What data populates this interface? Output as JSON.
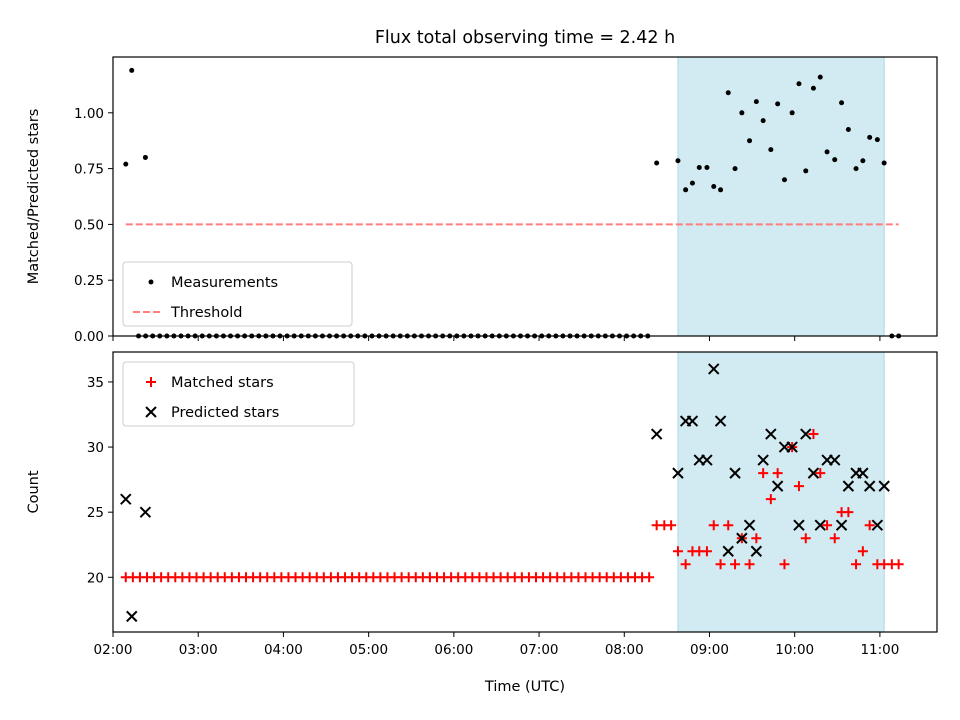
{
  "chart_data": [
    {
      "type": "scatter",
      "title": "Flux total observing time = 2.42 h",
      "ylabel": "Matched/Predicted stars",
      "xlabel": "",
      "xlim": [
        2.0,
        11.67
      ],
      "ylim": [
        0.0,
        1.25
      ],
      "yticks": [
        0.0,
        0.25,
        0.5,
        0.75,
        1.0
      ],
      "ytick_labels": [
        "0.00",
        "0.25",
        "0.50",
        "0.75",
        "1.00"
      ],
      "xticks": [
        2,
        3,
        4,
        5,
        6,
        7,
        8,
        9,
        10,
        11
      ],
      "shaded_region": {
        "x_start": 8.63,
        "x_end": 11.05,
        "color": "#add8e6"
      },
      "legend": {
        "position": "lower-left",
        "entries": [
          {
            "label": "Measurements",
            "marker": "dot",
            "color": "#000000"
          },
          {
            "label": "Threshold",
            "marker": "dashed-line",
            "color": "#ff7f7f"
          }
        ]
      },
      "threshold": {
        "label": "Threshold",
        "y": 0.5,
        "x_start": 2.15,
        "x_end": 11.22,
        "color": "#ff7f7f"
      },
      "series": [
        {
          "label": "Measurements",
          "marker": "dot",
          "color": "#000000",
          "points": [
            [
              2.15,
              0.77
            ],
            [
              2.22,
              1.19
            ],
            [
              2.38,
              0.8
            ],
            [
              8.38,
              0.775
            ],
            [
              8.63,
              0.785
            ],
            [
              8.72,
              0.655
            ],
            [
              8.8,
              0.685
            ],
            [
              8.88,
              0.755
            ],
            [
              8.97,
              0.755
            ],
            [
              9.05,
              0.67
            ],
            [
              9.13,
              0.655
            ],
            [
              9.22,
              1.09
            ],
            [
              9.3,
              0.75
            ],
            [
              9.38,
              1.0
            ],
            [
              9.47,
              0.875
            ],
            [
              9.55,
              1.05
            ],
            [
              9.63,
              0.965
            ],
            [
              9.72,
              0.835
            ],
            [
              9.8,
              1.04
            ],
            [
              9.88,
              0.7
            ],
            [
              9.97,
              1.0
            ],
            [
              10.05,
              1.13
            ],
            [
              10.13,
              0.74
            ],
            [
              10.22,
              1.11
            ],
            [
              10.3,
              1.16
            ],
            [
              10.38,
              0.825
            ],
            [
              10.47,
              0.79
            ],
            [
              10.55,
              1.045
            ],
            [
              10.63,
              0.925
            ],
            [
              10.72,
              0.75
            ],
            [
              10.8,
              0.785
            ],
            [
              10.88,
              0.89
            ],
            [
              10.97,
              0.88
            ],
            [
              11.05,
              0.775
            ]
          ],
          "zero_points": {
            "x_start": 2.3,
            "x_end": 8.3,
            "step": 0.083,
            "y": 0.0,
            "extra_x": [
              11.14,
              11.22
            ]
          }
        }
      ]
    },
    {
      "type": "scatter",
      "title": "",
      "ylabel": "Count",
      "xlabel": "Time (UTC)",
      "xlim": [
        2.0,
        11.67
      ],
      "ylim": [
        15.8,
        37.3
      ],
      "yticks": [
        20,
        25,
        30,
        35
      ],
      "ytick_labels": [
        "20",
        "25",
        "30",
        "35"
      ],
      "xticks": [
        2,
        3,
        4,
        5,
        6,
        7,
        8,
        9,
        10,
        11
      ],
      "xtick_labels": [
        "02:00",
        "03:00",
        "04:00",
        "05:00",
        "06:00",
        "07:00",
        "08:00",
        "09:00",
        "10:00",
        "11:00"
      ],
      "shaded_region": {
        "x_start": 8.63,
        "x_end": 11.05,
        "color": "#add8e6"
      },
      "legend": {
        "position": "upper-left",
        "entries": [
          {
            "label": "Matched stars",
            "marker": "plus",
            "color": "#ff0000"
          },
          {
            "label": "Predicted stars",
            "marker": "x",
            "color": "#000000"
          }
        ]
      },
      "series": [
        {
          "label": "Matched stars",
          "marker": "plus",
          "color": "#ff0000",
          "constant_run": {
            "x_start": 2.15,
            "x_end": 8.3,
            "step": 0.083,
            "y": 20
          },
          "points": [
            [
              8.38,
              24
            ],
            [
              8.47,
              24
            ],
            [
              8.55,
              24
            ],
            [
              8.63,
              22
            ],
            [
              8.72,
              21
            ],
            [
              8.8,
              22
            ],
            [
              8.88,
              22
            ],
            [
              8.97,
              22
            ],
            [
              9.05,
              24
            ],
            [
              9.13,
              21
            ],
            [
              9.22,
              24
            ],
            [
              9.3,
              21
            ],
            [
              9.38,
              23
            ],
            [
              9.47,
              21
            ],
            [
              9.55,
              23
            ],
            [
              9.63,
              28
            ],
            [
              9.72,
              26
            ],
            [
              9.8,
              28
            ],
            [
              9.88,
              21
            ],
            [
              9.97,
              30
            ],
            [
              10.05,
              27
            ],
            [
              10.13,
              23
            ],
            [
              10.22,
              31
            ],
            [
              10.3,
              28
            ],
            [
              10.38,
              24
            ],
            [
              10.47,
              23
            ],
            [
              10.55,
              25
            ],
            [
              10.63,
              25
            ],
            [
              10.72,
              21
            ],
            [
              10.8,
              22
            ],
            [
              10.88,
              24
            ],
            [
              10.97,
              21
            ],
            [
              11.05,
              21
            ],
            [
              11.14,
              21
            ],
            [
              11.22,
              21
            ]
          ]
        },
        {
          "label": "Predicted stars",
          "marker": "x",
          "color": "#000000",
          "points": [
            [
              2.15,
              26
            ],
            [
              2.22,
              17
            ],
            [
              2.38,
              25
            ],
            [
              8.38,
              31
            ],
            [
              8.63,
              28
            ],
            [
              8.72,
              32
            ],
            [
              8.8,
              32
            ],
            [
              8.88,
              29
            ],
            [
              8.97,
              29
            ],
            [
              9.05,
              36
            ],
            [
              9.13,
              32
            ],
            [
              9.22,
              22
            ],
            [
              9.3,
              28
            ],
            [
              9.38,
              23
            ],
            [
              9.47,
              24
            ],
            [
              9.55,
              22
            ],
            [
              9.63,
              29
            ],
            [
              9.72,
              31
            ],
            [
              9.8,
              27
            ],
            [
              9.88,
              30
            ],
            [
              9.97,
              30
            ],
            [
              10.05,
              24
            ],
            [
              10.13,
              31
            ],
            [
              10.22,
              28
            ],
            [
              10.3,
              24
            ],
            [
              10.38,
              29
            ],
            [
              10.47,
              29
            ],
            [
              10.55,
              24
            ],
            [
              10.63,
              27
            ],
            [
              10.72,
              28
            ],
            [
              10.8,
              28
            ],
            [
              10.88,
              27
            ],
            [
              10.97,
              24
            ],
            [
              11.05,
              27
            ]
          ]
        }
      ]
    }
  ]
}
